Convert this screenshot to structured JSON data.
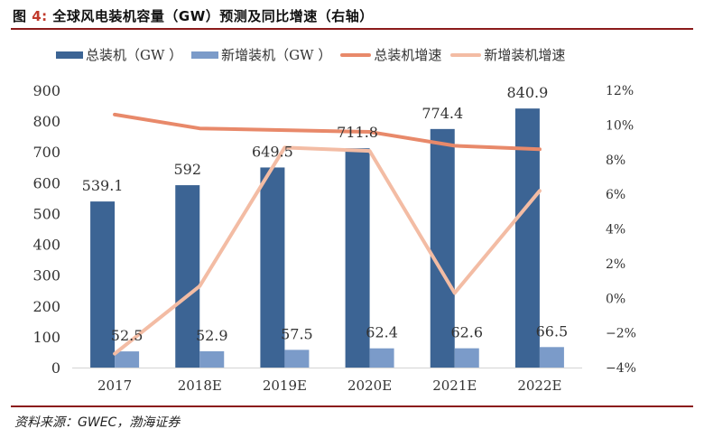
{
  "figure": {
    "title_prefix": "图 ",
    "title_number": "4:",
    "title_text": " 全球风电装机容量（GW）预测及同比增速（右轴）",
    "source": "资料来源：GWEC，渤海证券"
  },
  "colors": {
    "total_bar": "#3c6494",
    "new_bar": "#7b9bc9",
    "total_growth_line": "#e8896a",
    "new_growth_line": "#f3bca4",
    "axis_line": "#d9d9d9",
    "text": "#333333"
  },
  "chart_data": {
    "type": "bar+line",
    "title": "全球风电装机容量（GW）预测及同比增速（右轴）",
    "categories": [
      "2017",
      "2018E",
      "2019E",
      "2020E",
      "2021E",
      "2022E"
    ],
    "series": [
      {
        "name": "总装机（GW ）",
        "type": "bar",
        "axis": "left",
        "values": [
          539.1,
          592,
          649.5,
          711.8,
          774.4,
          840.9
        ],
        "labels": [
          "539.1",
          "592",
          "649.5",
          "711.8",
          "774.4",
          "840.9"
        ]
      },
      {
        "name": "新增装机（GW ）",
        "type": "bar",
        "axis": "left",
        "values": [
          52.5,
          52.9,
          57.5,
          62.4,
          62.6,
          66.5
        ],
        "labels": [
          "52.5",
          "52.9",
          "57.5",
          "62.4",
          "62.6",
          "66.5"
        ]
      },
      {
        "name": "总装机增速",
        "type": "line",
        "axis": "right",
        "values": [
          10.6,
          9.8,
          9.7,
          9.6,
          8.8,
          8.6
        ]
      },
      {
        "name": "新增装机增速",
        "type": "line",
        "axis": "right",
        "values": [
          -3.2,
          0.7,
          8.7,
          8.5,
          0.3,
          6.2
        ]
      }
    ],
    "y_left": {
      "range": [
        0,
        900
      ],
      "ticks": [
        "0",
        "100",
        "200",
        "300",
        "400",
        "500",
        "600",
        "700",
        "800",
        "900"
      ],
      "label": ""
    },
    "y_right": {
      "range": [
        -4,
        12
      ],
      "unit": "%",
      "ticks": [
        "-4%",
        "-2%",
        "0%",
        "2%",
        "4%",
        "6%",
        "8%",
        "10%",
        "12%"
      ],
      "label": ""
    },
    "xlabel": "",
    "grid": false,
    "legend_position": "top"
  }
}
